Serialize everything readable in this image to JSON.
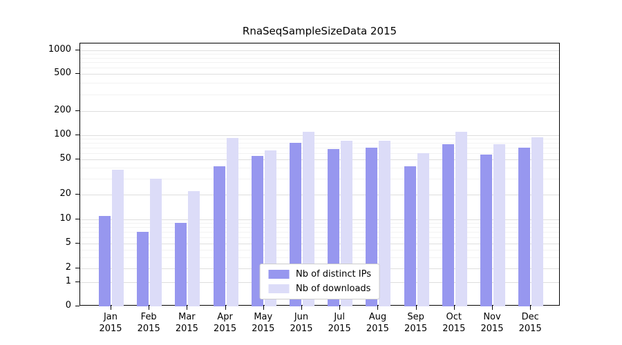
{
  "chart_data": {
    "type": "bar",
    "title": "RnaSeqSampleSizeData 2015",
    "year": "2015",
    "categories": [
      "Jan",
      "Feb",
      "Mar",
      "Apr",
      "May",
      "Jun",
      "Jul",
      "Aug",
      "Sep",
      "Oct",
      "Nov",
      "Dec"
    ],
    "series": [
      {
        "name": "Nb of distinct IPs",
        "color": "#9797ef",
        "values": [
          11,
          7,
          9,
          42,
          55,
          80,
          67,
          70,
          42,
          78,
          58,
          70
        ]
      },
      {
        "name": "Nb of downloads",
        "color": "#dcdcf8",
        "values": [
          38,
          30,
          22,
          92,
          65,
          110,
          85,
          86,
          60,
          110,
          77,
          95
        ]
      }
    ],
    "yticks": [
      0,
      1,
      2,
      5,
      10,
      20,
      50,
      100,
      200,
      500,
      1000
    ],
    "ylim": [
      0,
      1300
    ],
    "yscale": "symlog",
    "grid": true,
    "legend_position": "lower center"
  }
}
